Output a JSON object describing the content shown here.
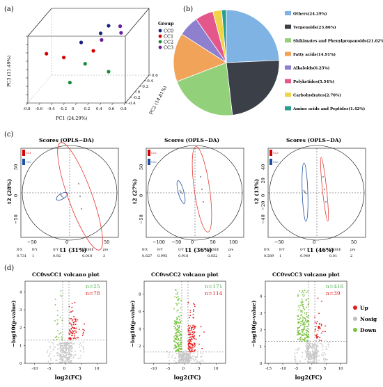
{
  "panels": {
    "a": {
      "label": "(a)",
      "legend_title": "Group",
      "groups": [
        {
          "name": "CC0",
          "color": "#1a237e"
        },
        {
          "name": "CC1",
          "color": "#d50000"
        },
        {
          "name": "CC2",
          "color": "#1b8a3a"
        },
        {
          "name": "CC3",
          "color": "#6a1b9a"
        }
      ],
      "xlabel": "PC1 (24.29%)",
      "ylabel": "PC2 (14.81%)",
      "zlabel": "PC3 (11.49%)",
      "xticks": [
        "-0.8",
        "-0.6",
        "-0.4",
        "-0.2",
        "0",
        "0.2",
        "0.4",
        "0.6",
        "0.8"
      ],
      "yticks": [
        "-0.4",
        "-0.2",
        "0",
        "0.2",
        "0.4",
        "0.6"
      ],
      "zticks": [
        "-0.8",
        "-0.6",
        "-0.4",
        "-0.2",
        "0",
        "0.2",
        "0.4",
        "0.6",
        "0.8"
      ]
    },
    "b": {
      "label": "(b)",
      "title": "",
      "legend": [
        {
          "name": "Others(24.29%)",
          "value": 24.29,
          "color": "#7eb3e3"
        },
        {
          "name": "Terpenoids(23.86%)",
          "value": 23.86,
          "color": "#3b3f48"
        },
        {
          "name": "Shikimates and Phenylpropanoids(21.02%)",
          "value": 21.02,
          "color": "#93d07a"
        },
        {
          "name": "Fatty acids(14.91%)",
          "value": 14.91,
          "color": "#f2a35a"
        },
        {
          "name": "Alkaloids(6.25%)",
          "value": 6.25,
          "color": "#8e7fcf"
        },
        {
          "name": "Polyketides(5.54%)",
          "value": 5.54,
          "color": "#e3578b"
        },
        {
          "name": "Carbohydrates(2.70%)",
          "value": 2.7,
          "color": "#f1d548"
        },
        {
          "name": "Amino acids and Peptides(1.42%)",
          "value": 1.42,
          "color": "#2a9d8f"
        }
      ]
    },
    "c": {
      "label": "(c)",
      "plots": [
        {
          "title": "Scores (OPLS−DA)",
          "ylabel": "t2 (28%)",
          "xlabel": "t1 (31%)",
          "legend": [
            "CC1",
            "CC0"
          ],
          "xticks": [
            "−50",
            "0",
            "50"
          ],
          "yticks": [
            "50",
            "0",
            "−50"
          ],
          "stats": {
            "r2x": "0.731",
            "r2y": "1",
            "q2y": "0.92",
            "rmsee": "0.018",
            "pre": "3"
          }
        },
        {
          "title": "Scores (OPLS−DA)",
          "ylabel": "t2 (27%)",
          "xlabel": "t1 (36%)",
          "legend": [
            "CC2",
            "CC0"
          ],
          "xticks": [
            "−100",
            "−50",
            "0",
            "50",
            "100"
          ],
          "yticks": [
            "50",
            "0",
            "−50"
          ],
          "stats": {
            "r2x": "0.627",
            "r2y": "0.995",
            "q2y": "0.918",
            "rmsee": "0.052",
            "pre": "2"
          }
        },
        {
          "title": "Scores (OPLS−DA)",
          "ylabel": "t2 (13%)",
          "xlabel": "t1 (46%)",
          "legend": [
            "CC3",
            "CC0"
          ],
          "xticks": [
            "−50",
            "0",
            "50"
          ],
          "yticks": [
            "40",
            "20",
            "0",
            "−20",
            "−40"
          ],
          "stats": {
            "r2x": "0.589",
            "r2y": "1",
            "q2y": "0.949",
            "rmsee": "0.01",
            "pre": "2"
          }
        }
      ],
      "stat_headers": [
        "R²X",
        "R²Y",
        "Q²Y",
        "RMSEE",
        "pre"
      ]
    },
    "d": {
      "label": "(d)",
      "plots": [
        {
          "title": "CC0vsCC1 volcano plot",
          "n_down": "n=25",
          "n_up": "n=78",
          "xticks": [
            "-10",
            "-5",
            "0",
            "5",
            "10"
          ],
          "yticks": [
            "0",
            "1",
            "2",
            "3",
            "4"
          ],
          "xlim": [
            -13,
            13
          ],
          "ylim": [
            0,
            4.6
          ]
        },
        {
          "title": "CC0vsCC2 volcano plot",
          "n_down": "n=171",
          "n_up": "n=114",
          "xticks": [
            "-10",
            "-5",
            "0",
            "5",
            "10"
          ],
          "yticks": [
            "2",
            "4",
            "6",
            "8"
          ],
          "xlim": [
            -13,
            13
          ],
          "ylim": [
            0,
            9.5
          ]
        },
        {
          "title": "CC0vsCC3 volcano plot",
          "n_down": "n=416",
          "n_up": "n=39",
          "xticks": [
            "-15",
            "-10",
            "-5",
            "0",
            "5",
            "10"
          ],
          "yticks": [
            "0",
            "1",
            "2",
            "3",
            "4"
          ],
          "xlim": [
            -16,
            12
          ],
          "ylim": [
            0,
            4.9
          ]
        }
      ],
      "xlabel": "log2(FC)",
      "ylabel": "−log10(p-value)",
      "legend": [
        {
          "name": "Up",
          "color": "#e41a1c"
        },
        {
          "name": "Nosig",
          "color": "#bdbdbd"
        },
        {
          "name": "Down",
          "color": "#7cc242"
        }
      ]
    }
  },
  "chart_data": [
    {
      "type": "scatter",
      "title": "",
      "xlabel": "PC1 (24.29%)",
      "ylabel": "PC2 (14.81%)",
      "zlabel": "PC3 (11.49%)",
      "series": [
        {
          "name": "CC0",
          "points": [
            [
              0.35,
              0.1,
              0.75
            ],
            [
              0.15,
              0.3,
              0.45
            ],
            [
              -0.1,
              0.1,
              0.35
            ]
          ]
        },
        {
          "name": "CC1",
          "points": [
            [
              -0.6,
              -0.1,
              0.2
            ],
            [
              -0.35,
              0.0,
              0.05
            ],
            [
              0.1,
              0.1,
              0.15
            ]
          ]
        },
        {
          "name": "CC2",
          "points": [
            [
              0.0,
              0.0,
              -0.1
            ],
            [
              0.35,
              0.1,
              -0.35
            ],
            [
              -0.25,
              0.0,
              -0.55
            ]
          ]
        },
        {
          "name": "CC3",
          "points": [
            [
              0.4,
              0.5,
              0.5
            ],
            [
              0.45,
              0.4,
              0.4
            ],
            [
              0.2,
              0.2,
              0.35
            ]
          ]
        }
      ]
    },
    {
      "type": "pie",
      "labels": [
        "Others",
        "Terpenoids",
        "Shikimates and Phenylpropanoids",
        "Fatty acids",
        "Alkaloids",
        "Polyketides",
        "Carbohydrates",
        "Amino acids and Peptides"
      ],
      "values": [
        24.29,
        23.86,
        21.02,
        14.91,
        6.25,
        5.54,
        2.7,
        1.42
      ]
    },
    {
      "type": "scatter",
      "title": "Scores (OPLS−DA)",
      "xlabel": "t1 (31%)",
      "ylabel": "t2 (28%)",
      "series": [
        {
          "name": "CC1",
          "points": [
            [
              18,
              20
            ],
            [
              22,
              5
            ],
            [
              30,
              -15
            ],
            [
              24,
              -10
            ]
          ]
        },
        {
          "name": "CC0",
          "points": [
            [
              -20,
              -22
            ],
            [
              -22,
              -23
            ],
            [
              -18,
              -21
            ]
          ]
        }
      ]
    },
    {
      "type": "scatter",
      "title": "Scores (OPLS−DA)",
      "xlabel": "t1 (36%)",
      "ylabel": "t2 (27%)",
      "series": [
        {
          "name": "CC2",
          "points": [
            [
              68,
              35
            ],
            [
              72,
              15
            ],
            [
              78,
              -20
            ]
          ]
        },
        {
          "name": "CC0",
          "points": [
            [
              -50,
              -5
            ],
            [
              -45,
              -10
            ],
            [
              -40,
              -15
            ]
          ]
        }
      ]
    },
    {
      "type": "scatter",
      "title": "Scores (OPLS−DA)",
      "xlabel": "t1 (46%)",
      "ylabel": "t2 (13%)",
      "series": [
        {
          "name": "CC3",
          "points": [
            [
              22,
              15
            ],
            [
              25,
              0
            ],
            [
              28,
              -25
            ]
          ]
        },
        {
          "name": "CC0",
          "points": [
            [
              -30,
              15
            ],
            [
              -30,
              5
            ],
            [
              -28,
              -10
            ],
            [
              -27,
              -25
            ]
          ]
        }
      ]
    },
    {
      "type": "scatter",
      "title": "CC0vsCC1 volcano plot",
      "xlabel": "log2(FC)",
      "ylabel": "−log10(p-value)",
      "counts": {
        "down": 25,
        "up": 78
      }
    },
    {
      "type": "scatter",
      "title": "CC0vsCC2 volcano plot",
      "xlabel": "log2(FC)",
      "ylabel": "−log10(p-value)",
      "counts": {
        "down": 171,
        "up": 114
      }
    },
    {
      "type": "scatter",
      "title": "CC0vsCC3 volcano plot",
      "xlabel": "log2(FC)",
      "ylabel": "−log10(p-value)",
      "counts": {
        "down": 416,
        "up": 39
      }
    }
  ]
}
